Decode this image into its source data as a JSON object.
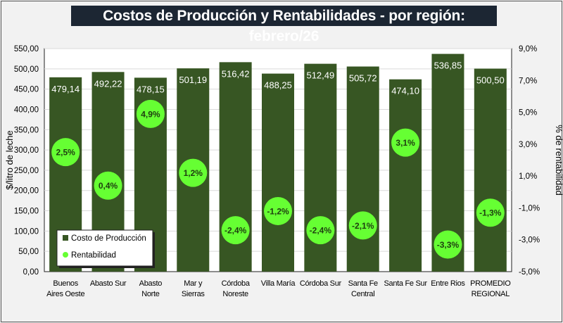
{
  "chart_data": {
    "type": "bar",
    "title": "Costos de Producción y Rentabilidades - por región: febrero/26",
    "categories": [
      [
        "Buenos",
        "Aires Oeste"
      ],
      [
        "Abasto Sur"
      ],
      [
        "Abasto",
        "Norte"
      ],
      [
        "Mar y",
        "Sierras"
      ],
      [
        "Córdoba",
        "Noreste"
      ],
      [
        "Villa María"
      ],
      [
        "Córdoba Sur"
      ],
      [
        "Santa Fe",
        "Central"
      ],
      [
        "Santa Fe Sur"
      ],
      [
        "Entre Rios"
      ],
      [
        "PROMEDIO",
        "REGIONAL"
      ]
    ],
    "series": [
      {
        "name": "Costo de Producción",
        "axis": "left",
        "type": "bar",
        "color": "#375623",
        "values": [
          479.14,
          492.22,
          478.15,
          501.19,
          516.42,
          488.25,
          512.49,
          505.72,
          474.1,
          536.85,
          500.5
        ],
        "labels": [
          "479,14",
          "492,22",
          "478,15",
          "501,19",
          "516,42",
          "488,25",
          "512,49",
          "505,72",
          "474,10",
          "536,85",
          "500,50"
        ]
      },
      {
        "name": "Rentabilidad",
        "axis": "right",
        "type": "scatter",
        "color": "#66ff33",
        "values": [
          2.5,
          0.4,
          4.9,
          1.2,
          -2.4,
          -1.2,
          -2.4,
          -2.1,
          3.1,
          -3.3,
          -1.3
        ],
        "labels": [
          "2,5%",
          "0,4%",
          "4,9%",
          "1,2%",
          "-2,4%",
          "-1,2%",
          "-2,4%",
          "-2,1%",
          "3,1%",
          "-3,3%",
          "-1,3%"
        ]
      }
    ],
    "ylabel": "$/litro de leche",
    "y2label": "% de rentabilidad",
    "ylim": [
      0,
      550
    ],
    "y2lim": [
      -5,
      9
    ],
    "yticks": [
      "0,00",
      "50,00",
      "100,00",
      "150,00",
      "200,00",
      "250,00",
      "300,00",
      "350,00",
      "400,00",
      "450,00",
      "500,00",
      "550,00"
    ],
    "y2ticks": [
      "-5,0%",
      "-3,0%",
      "-1,0%",
      "1,0%",
      "3,0%",
      "5,0%",
      "7,0%",
      "9,0%"
    ],
    "grid": true,
    "legend": "bottom-left"
  }
}
